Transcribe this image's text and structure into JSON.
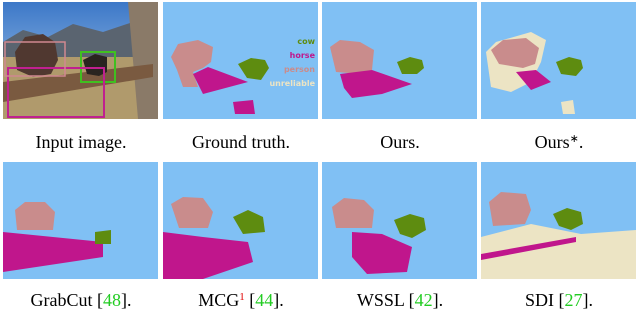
{
  "panels": [
    {
      "caption": [
        {
          "text": "Input image.",
          "style": "plain"
        }
      ]
    },
    {
      "caption": [
        {
          "text": "Ground truth.",
          "style": "plain"
        }
      ],
      "legend": [
        {
          "text": "cow",
          "color": "#5e8c10"
        },
        {
          "text": "horse",
          "color": "#c0168c"
        },
        {
          "text": "person",
          "color": "#c98c8c"
        },
        {
          "text": "unreliable",
          "color": "#ece4c4"
        }
      ]
    },
    {
      "caption": [
        {
          "text": "Ours.",
          "style": "plain"
        }
      ]
    },
    {
      "caption": [
        {
          "text": "Ours",
          "style": "plain"
        },
        {
          "text": "∗",
          "style": "sup"
        },
        {
          "text": ".",
          "style": "plain"
        }
      ]
    },
    {
      "caption": [
        {
          "text": "GrabCut [",
          "style": "plain"
        },
        {
          "text": "48",
          "style": "cite"
        },
        {
          "text": "].",
          "style": "plain"
        }
      ]
    },
    {
      "caption": [
        {
          "text": "MCG",
          "style": "plain"
        },
        {
          "text": "1",
          "style": "sup-red"
        },
        {
          "text": " [",
          "style": "plain"
        },
        {
          "text": "44",
          "style": "cite"
        },
        {
          "text": "].",
          "style": "plain"
        }
      ]
    },
    {
      "caption": [
        {
          "text": "WSSL [",
          "style": "plain"
        },
        {
          "text": "42",
          "style": "cite"
        },
        {
          "text": "].",
          "style": "plain"
        }
      ]
    },
    {
      "caption": [
        {
          "text": "SDI [",
          "style": "plain"
        },
        {
          "text": "27",
          "style": "cite"
        },
        {
          "text": "].",
          "style": "plain"
        }
      ]
    }
  ]
}
